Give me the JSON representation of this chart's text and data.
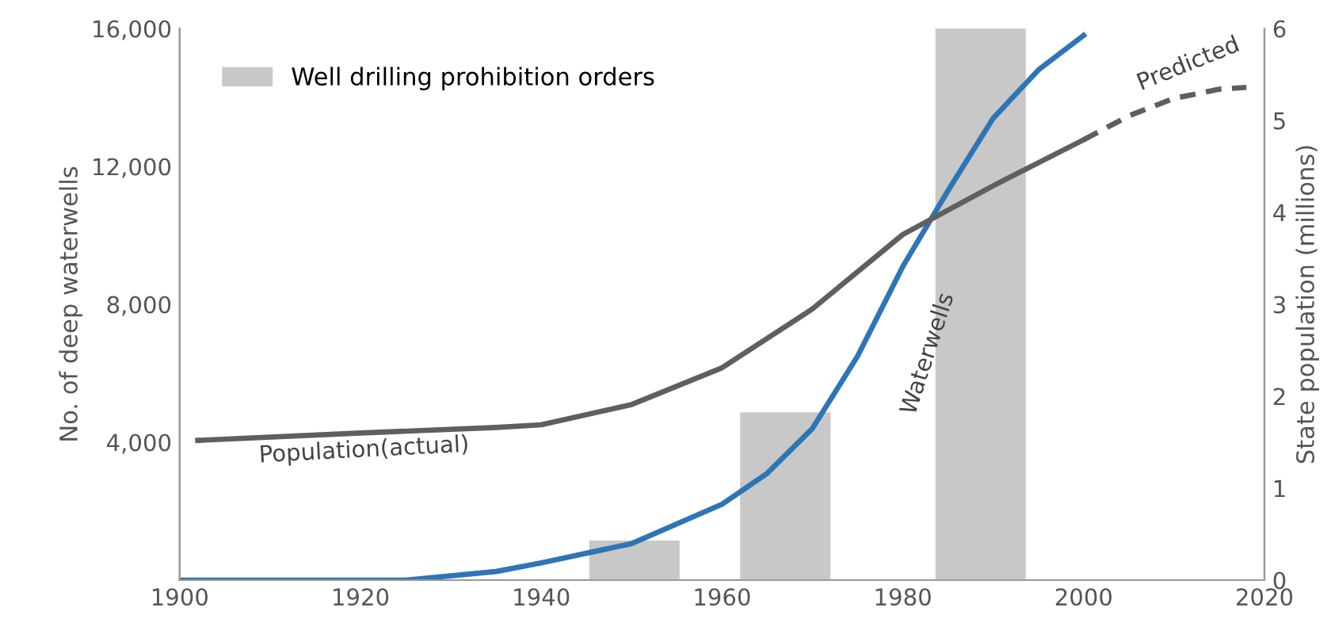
{
  "chart_data": {
    "type": "line",
    "xlim": [
      1900,
      2020
    ],
    "xticks": [
      1900,
      1920,
      1940,
      1960,
      1980,
      2000,
      2020
    ],
    "ylim": [
      0,
      16000
    ],
    "yticks": [
      {
        "value": 4000,
        "label": "4,000"
      },
      {
        "value": 8000,
        "label": "8,000"
      },
      {
        "value": 12000,
        "label": "12,000"
      },
      {
        "value": 16000,
        "label": "16,000"
      }
    ],
    "y2lim": [
      0,
      6
    ],
    "y2ticks": [
      0,
      1,
      2,
      3,
      4,
      5,
      6
    ],
    "ylabel": "No. of deep waterwells",
    "y2label": "State population (millions)",
    "legend": "top left",
    "grid": false,
    "series": [
      {
        "name": "Well drilling prohibition orders",
        "type": "bar",
        "color": "#c8c8c8",
        "x": [
          1950.3,
          1967.0,
          1988.6
        ],
        "values": [
          1150,
          4870,
          16000
        ]
      },
      {
        "color": "#2e75b6",
        "x": [
          1900,
          1910,
          1925,
          1935,
          1940,
          1950,
          1960,
          1965,
          1970,
          1975,
          1980,
          1985,
          1990,
          1995,
          2000
        ],
        "values": [
          0,
          0,
          0,
          250,
          500,
          1060,
          2200,
          3100,
          4400,
          6500,
          9100,
          11300,
          13400,
          14800,
          15800
        ]
      },
      {
        "axis": "y2",
        "color": "#5f5f5f",
        "x": [
          1902,
          1920,
          1935,
          1940,
          1950,
          1960,
          1970,
          1980,
          1990,
          2000
        ],
        "values": [
          1.52,
          1.6,
          1.66,
          1.69,
          1.91,
          2.31,
          2.95,
          3.76,
          4.29,
          4.79
        ]
      },
      {
        "axis": "y2",
        "color": "#5f5f5f",
        "line_style": "dashed",
        "x": [
          2000,
          2005,
          2010,
          2015,
          2018
        ],
        "values": [
          4.79,
          5.05,
          5.24,
          5.34,
          5.36
        ]
      }
    ],
    "annotations": [
      "Population(actual)",
      "Waterwells",
      "Predicted"
    ]
  }
}
